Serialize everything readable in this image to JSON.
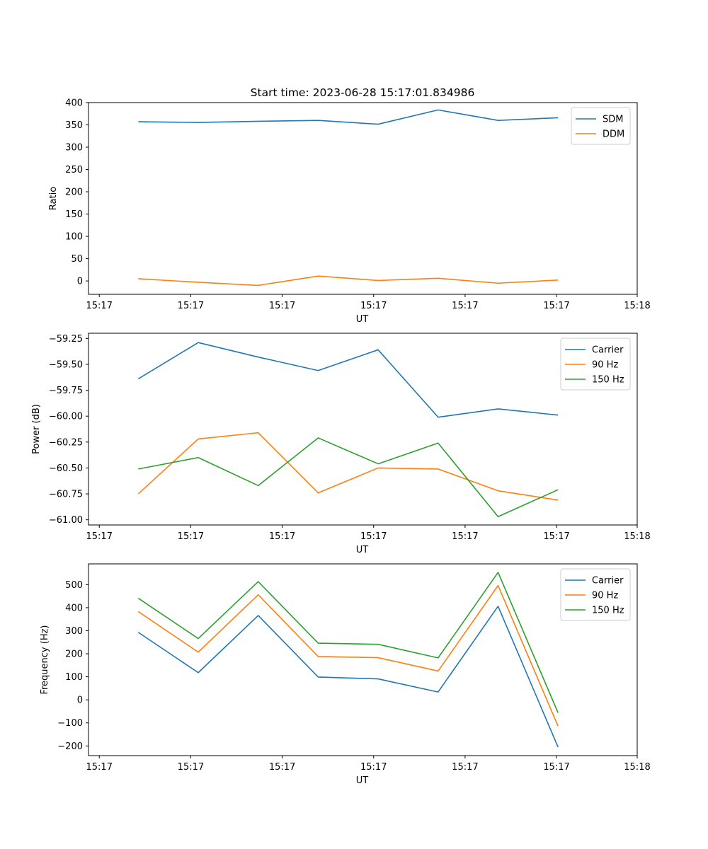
{
  "figure": {
    "title": "Start time: 2023-06-28 15:17:01.834986"
  },
  "colors": {
    "blue": "#1f77b4",
    "orange": "#ff7f0e",
    "green": "#2ca02c"
  },
  "chart_data": [
    {
      "type": "line",
      "title": "Start time: 2023-06-28 15:17:01.834986",
      "xlabel": "UT",
      "ylabel": "Ratio",
      "x_tick_labels": [
        "15:17",
        "15:17",
        "15:17",
        "15:17",
        "15:17",
        "15:17",
        "15:18"
      ],
      "x": [
        1,
        2,
        3,
        4,
        5,
        6,
        7,
        8
      ],
      "xlim": [
        0.17,
        9.32
      ],
      "y_ticks": [
        0,
        50,
        100,
        150,
        200,
        250,
        300,
        350,
        400
      ],
      "ylim": [
        -30,
        400
      ],
      "legend": "top-right",
      "series": [
        {
          "name": "SDM",
          "color": "#1f77b4",
          "values": [
            357,
            355.5,
            358,
            360,
            351.5,
            383.5,
            360,
            366
          ]
        },
        {
          "name": "DDM",
          "color": "#ff7f0e",
          "values": [
            5,
            -3,
            -10,
            11,
            1,
            6,
            -5,
            2
          ]
        }
      ]
    },
    {
      "type": "line",
      "xlabel": "UT",
      "ylabel": "Power (dB)",
      "x_tick_labels": [
        "15:17",
        "15:17",
        "15:17",
        "15:17",
        "15:17",
        "15:17",
        "15:18"
      ],
      "x": [
        1,
        2,
        3,
        4,
        5,
        6,
        7,
        8
      ],
      "xlim": [
        0.17,
        9.32
      ],
      "y_ticks": [
        -61.0,
        -60.75,
        -60.5,
        -60.25,
        -60.0,
        -59.75,
        -59.5,
        -59.25
      ],
      "y_tick_labels": [
        "−61.00",
        "−60.75",
        "−60.50",
        "−60.25",
        "−60.00",
        "−59.75",
        "−59.50",
        "−59.25"
      ],
      "ylim": [
        -61.05,
        -59.2
      ],
      "legend": "top-right",
      "series": [
        {
          "name": "Carrier",
          "color": "#1f77b4",
          "values": [
            -59.64,
            -59.29,
            -59.43,
            -59.56,
            -59.36,
            -60.01,
            -59.93,
            -59.99
          ]
        },
        {
          "name": "90 Hz",
          "color": "#ff7f0e",
          "values": [
            -60.75,
            -60.22,
            -60.16,
            -60.74,
            -60.5,
            -60.51,
            -60.72,
            -60.81
          ]
        },
        {
          "name": "150 Hz",
          "color": "#2ca02c",
          "values": [
            -60.51,
            -60.4,
            -60.67,
            -60.21,
            -60.46,
            -60.26,
            -60.97,
            -60.71
          ]
        }
      ]
    },
    {
      "type": "line",
      "xlabel": "UT",
      "ylabel": "Frequency (Hz)",
      "x_tick_labels": [
        "15:17",
        "15:17",
        "15:17",
        "15:17",
        "15:17",
        "15:17",
        "15:18"
      ],
      "x": [
        1,
        2,
        3,
        4,
        5,
        6,
        7,
        8
      ],
      "xlim": [
        0.17,
        9.32
      ],
      "y_ticks": [
        -200,
        -100,
        0,
        100,
        200,
        300,
        400,
        500
      ],
      "y_tick_labels": [
        "−200",
        "−100",
        "0",
        "100",
        "200",
        "300",
        "400",
        "500"
      ],
      "ylim": [
        -242,
        590
      ],
      "legend": "top-right",
      "series": [
        {
          "name": "Carrier",
          "color": "#1f77b4",
          "values": [
            293,
            118,
            366,
            99,
            91,
            34,
            406,
            -205
          ]
        },
        {
          "name": "90 Hz",
          "color": "#ff7f0e",
          "values": [
            383,
            207,
            456,
            188,
            183,
            125,
            496,
            -114
          ]
        },
        {
          "name": "150 Hz",
          "color": "#2ca02c",
          "values": [
            441,
            266,
            513,
            246,
            241,
            182,
            553,
            -56
          ]
        }
      ]
    }
  ]
}
